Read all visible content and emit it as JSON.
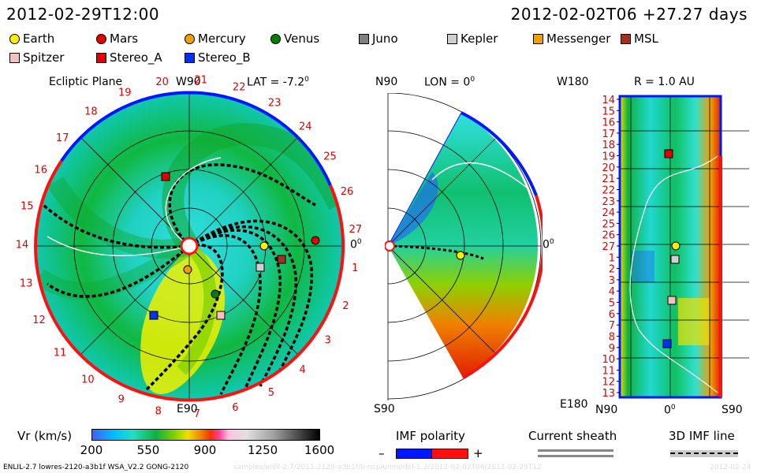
{
  "header": {
    "current_time": "2012-02-29T12:00",
    "reference_time": "2012-02-02T06",
    "offset": "+27.27 days"
  },
  "legend": [
    {
      "label": "Earth",
      "shape": "circle",
      "color": "#ffee00"
    },
    {
      "label": "Mars",
      "shape": "circle",
      "color": "#e00000"
    },
    {
      "label": "Mercury",
      "shape": "circle",
      "color": "#f0a000"
    },
    {
      "label": "Venus",
      "shape": "circle",
      "color": "#008000"
    },
    {
      "label": "Juno",
      "shape": "square",
      "color": "#808080"
    },
    {
      "label": "Kepler",
      "shape": "square",
      "color": "#d0d0d0"
    },
    {
      "label": "Messenger",
      "shape": "square",
      "color": "#f0a000"
    },
    {
      "label": "MSL",
      "shape": "square",
      "color": "#a03020"
    },
    {
      "label": "Spitzer",
      "shape": "square",
      "color": "#f6c0c0"
    },
    {
      "label": "Stereo_A",
      "shape": "square",
      "color": "#e00000"
    },
    {
      "label": "Stereo_B",
      "shape": "square",
      "color": "#0030ff"
    }
  ],
  "ecliptic": {
    "title": "Ecliptic Plane",
    "top_label": "W90",
    "lat_label": "LAT = -7.2",
    "lat_sup": "0",
    "right_label": "0",
    "right_sup": "0",
    "bottom_label": "E90",
    "ticks": [
      "1",
      "2",
      "3",
      "4",
      "5",
      "6",
      "7",
      "8",
      "9",
      "10",
      "11",
      "12",
      "13",
      "14",
      "15",
      "16",
      "17",
      "18",
      "19",
      "20",
      "21",
      "22",
      "23",
      "24",
      "25",
      "26",
      "27"
    ]
  },
  "meridional": {
    "top_label": "N90",
    "lon_label": "LON = 0",
    "lon_sup": "0",
    "right_label": "0",
    "right_sup": "0",
    "bottom_label": "S90"
  },
  "radial": {
    "top_left_label": "W180",
    "r_label": "R = 1.0 AU",
    "bottom_left_label": "E180",
    "bottom_labels": [
      "N90",
      "0",
      "S90"
    ],
    "bottom_mid_sup": "0",
    "rows": [
      "14",
      "15",
      "16",
      "17",
      "18",
      "19",
      "20",
      "21",
      "22",
      "23",
      "24",
      "25",
      "26",
      "27",
      "1",
      "2",
      "3",
      "4",
      "5",
      "6",
      "7",
      "8",
      "9",
      "10",
      "11",
      "12",
      "13"
    ]
  },
  "colorbar": {
    "title": "Vr (km/s)",
    "ticks": [
      "200",
      "550",
      "900",
      "1250",
      "1600"
    ]
  },
  "imf": {
    "title": "IMF polarity",
    "minus": "–",
    "plus": "+"
  },
  "current_sheath": {
    "title": "Current sheath"
  },
  "imf_line": {
    "title": "3D IMF line"
  },
  "footer": {
    "model": "ENLIL-2.7 lowres-2120-a3b1f WSA_V2.2 GONG-2120",
    "run": "samples/enlil-2.7/2011-2120-a3b1f/b-ncp/unmodel-1.2/2012-02-02T06/2012-02-29T12",
    "date": "2012-02-24"
  },
  "colors": {
    "blue_polarity": "#0018ff",
    "red_polarity": "#ff1010",
    "tick_red": "#e00000"
  }
}
